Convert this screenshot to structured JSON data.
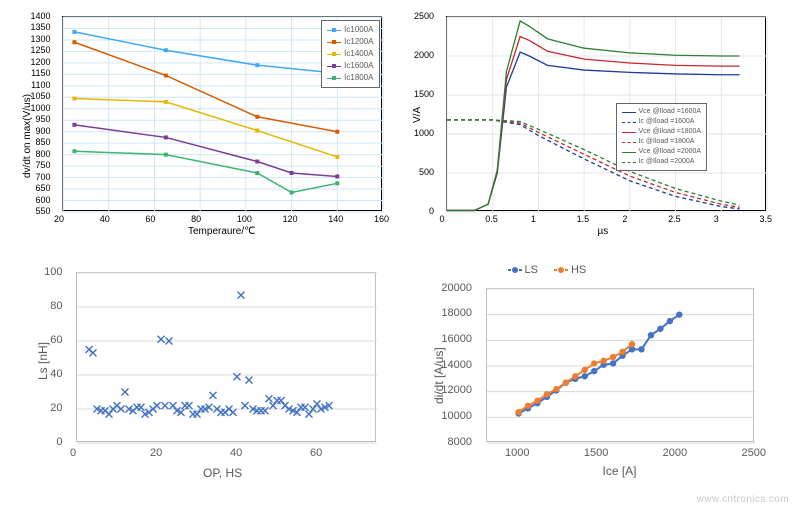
{
  "watermark": "www.cntronics.com",
  "chart_tl": {
    "type": "line",
    "xlabel": "Temperaure/℃",
    "ylabel": "dv/dt on max(V/us)",
    "xlim": [
      20,
      160
    ],
    "ylim": [
      550,
      1400
    ],
    "xtick_step": 20,
    "ytick_step": 50,
    "background_color": "#ffffff",
    "grid_color": "#cfe6f5",
    "axis_color": "#000000",
    "tick_fontsize": 9,
    "label_fontsize": 10,
    "legend_pos": "top-right",
    "legend_fontsize": 8,
    "series": [
      {
        "name": "Ic1000A",
        "color": "#3fa9f5",
        "x": [
          25,
          65,
          105,
          140
        ],
        "y": [
          1335,
          1255,
          1190,
          1155
        ]
      },
      {
        "name": "Ic1200A",
        "color": "#d55e00",
        "x": [
          25,
          65,
          105,
          140
        ],
        "y": [
          1290,
          1145,
          965,
          900
        ]
      },
      {
        "name": "Ic1400A",
        "color": "#e6b800",
        "x": [
          25,
          65,
          105,
          140
        ],
        "y": [
          1045,
          1030,
          905,
          790
        ]
      },
      {
        "name": "Ic1600A",
        "color": "#7d3c98",
        "x": [
          25,
          65,
          105,
          120,
          140
        ],
        "y": [
          930,
          875,
          770,
          720,
          705
        ]
      },
      {
        "name": "Ic1800A",
        "color": "#3cb371",
        "x": [
          25,
          65,
          105,
          120,
          140
        ],
        "y": [
          815,
          800,
          720,
          635,
          675
        ]
      }
    ]
  },
  "chart_tr": {
    "type": "line",
    "xlabel": "µs",
    "ylabel": "V/A",
    "xlim": [
      0,
      3.5
    ],
    "ylim": [
      0,
      2500
    ],
    "xtick_step": 0.5,
    "ytick_step": 500,
    "background_color": "#ffffff",
    "grid_color": "#e6e6e6",
    "axis_color": "#000000",
    "tick_fontsize": 9,
    "label_fontsize": 10,
    "legend_pos": "middle-right",
    "legend_fontsize": 7,
    "series": [
      {
        "name": "Vce @Iload =1600A",
        "color": "#1f3b9c",
        "dash": false,
        "x": [
          0,
          0.3,
          0.45,
          0.55,
          0.65,
          0.8,
          0.9,
          1.1,
          1.5,
          2.0,
          2.5,
          3.0,
          3.2
        ],
        "y": [
          20,
          20,
          100,
          500,
          1600,
          2050,
          2000,
          1880,
          1820,
          1790,
          1770,
          1760,
          1760
        ]
      },
      {
        "name": "Ic @Iload =1600A",
        "color": "#1f3b9c",
        "dash": true,
        "x": [
          0,
          0.3,
          0.5,
          0.8,
          1.0,
          1.5,
          2.0,
          2.5,
          3.0,
          3.2
        ],
        "y": [
          1180,
          1180,
          1180,
          1120,
          980,
          680,
          400,
          200,
          70,
          40
        ]
      },
      {
        "name": "Vce @Iload =1800A",
        "color": "#c62828",
        "dash": false,
        "x": [
          0,
          0.3,
          0.45,
          0.55,
          0.65,
          0.8,
          0.9,
          1.1,
          1.5,
          2.0,
          2.5,
          3.0,
          3.2
        ],
        "y": [
          20,
          20,
          100,
          520,
          1700,
          2250,
          2200,
          2060,
          1960,
          1910,
          1880,
          1870,
          1870
        ]
      },
      {
        "name": "Ic @Iload =1800A",
        "color": "#c62828",
        "dash": true,
        "x": [
          0,
          0.3,
          0.5,
          0.8,
          1.0,
          1.5,
          2.0,
          2.5,
          3.0,
          3.2
        ],
        "y": [
          1180,
          1180,
          1180,
          1140,
          1020,
          740,
          460,
          250,
          100,
          60
        ]
      },
      {
        "name": "Vce @Iload =2000A",
        "color": "#2e7d32",
        "dash": false,
        "x": [
          0,
          0.3,
          0.45,
          0.55,
          0.65,
          0.8,
          0.9,
          1.1,
          1.5,
          2.0,
          2.5,
          3.0,
          3.2
        ],
        "y": [
          20,
          20,
          100,
          540,
          1800,
          2450,
          2380,
          2220,
          2100,
          2040,
          2010,
          2000,
          2000
        ]
      },
      {
        "name": "Ic @Iload =2000A",
        "color": "#2e7d32",
        "dash": true,
        "x": [
          0,
          0.3,
          0.5,
          0.8,
          1.0,
          1.5,
          2.0,
          2.5,
          3.0,
          3.2
        ],
        "y": [
          1180,
          1180,
          1180,
          1160,
          1060,
          800,
          520,
          300,
          140,
          90
        ]
      }
    ]
  },
  "chart_bl": {
    "type": "scatter",
    "xlabel": "OP, HS",
    "ylabel": "Ls [nH]",
    "xlim": [
      0,
      75
    ],
    "ylim": [
      0,
      100
    ],
    "xtick_step": 20,
    "ytick_step": 20,
    "background_color": "#ffffff",
    "grid_color": "#d9d9d9",
    "border_color": "#bfbfbf",
    "marker_color": "#4472c4",
    "marker_style": "x",
    "marker_size": 7,
    "x": [
      3,
      4,
      5,
      6,
      7,
      8,
      9,
      10,
      11,
      12,
      13,
      14,
      15,
      16,
      17,
      18,
      19,
      20,
      21,
      22,
      23,
      24,
      25,
      26,
      27,
      28,
      29,
      30,
      31,
      32,
      33,
      34,
      35,
      36,
      37,
      38,
      39,
      40,
      41,
      42,
      43,
      44,
      45,
      46,
      47,
      48,
      49,
      50,
      51,
      52,
      53,
      54,
      55,
      56,
      57,
      58,
      59,
      60,
      61,
      62,
      63
    ],
    "y": [
      55,
      53,
      20,
      19,
      19,
      17,
      20,
      22,
      20,
      30,
      20,
      19,
      21,
      21,
      17,
      18,
      20,
      22,
      61,
      22,
      60,
      22,
      19,
      18,
      22,
      22,
      17,
      17,
      20,
      20,
      21,
      28,
      20,
      18,
      18,
      20,
      18,
      39,
      87,
      22,
      37,
      20,
      19,
      19,
      19,
      26,
      22,
      25,
      25,
      22,
      20,
      19,
      18,
      21,
      21,
      17,
      20,
      23,
      20,
      21,
      22
    ]
  },
  "chart_br": {
    "type": "line-marker",
    "xlabel": "Ice [A]",
    "ylabel": "di/dt [A/us]",
    "xlim": [
      800,
      2500
    ],
    "ylim": [
      8000,
      20000
    ],
    "xticks": [
      1000,
      1500,
      2000,
      2500
    ],
    "ytick_step": 2000,
    "background_color": "#ffffff",
    "grid_color": "#d9d9d9",
    "border_color": "#bfbfbf",
    "legend_pos": "top-center",
    "legend_fontsize": 10,
    "series": [
      {
        "name": "LS",
        "color": "#4472c4",
        "x": [
          1000,
          1060,
          1120,
          1180,
          1240,
          1300,
          1360,
          1420,
          1480,
          1540,
          1600,
          1660,
          1720,
          1780,
          1840,
          1900,
          1960,
          2020
        ],
        "y": [
          10300,
          10700,
          11100,
          11600,
          12100,
          12700,
          13000,
          13200,
          13600,
          14100,
          14200,
          14800,
          15300,
          15300,
          16400,
          16900,
          17500,
          18000
        ]
      },
      {
        "name": "HS",
        "color": "#ed7d31",
        "x": [
          1000,
          1060,
          1120,
          1180,
          1240,
          1300,
          1360,
          1420,
          1480,
          1540,
          1600,
          1660,
          1720
        ],
        "y": [
          10400,
          10900,
          11300,
          11800,
          12200,
          12700,
          13200,
          13700,
          14200,
          14400,
          14700,
          15100,
          15700
        ]
      }
    ]
  }
}
